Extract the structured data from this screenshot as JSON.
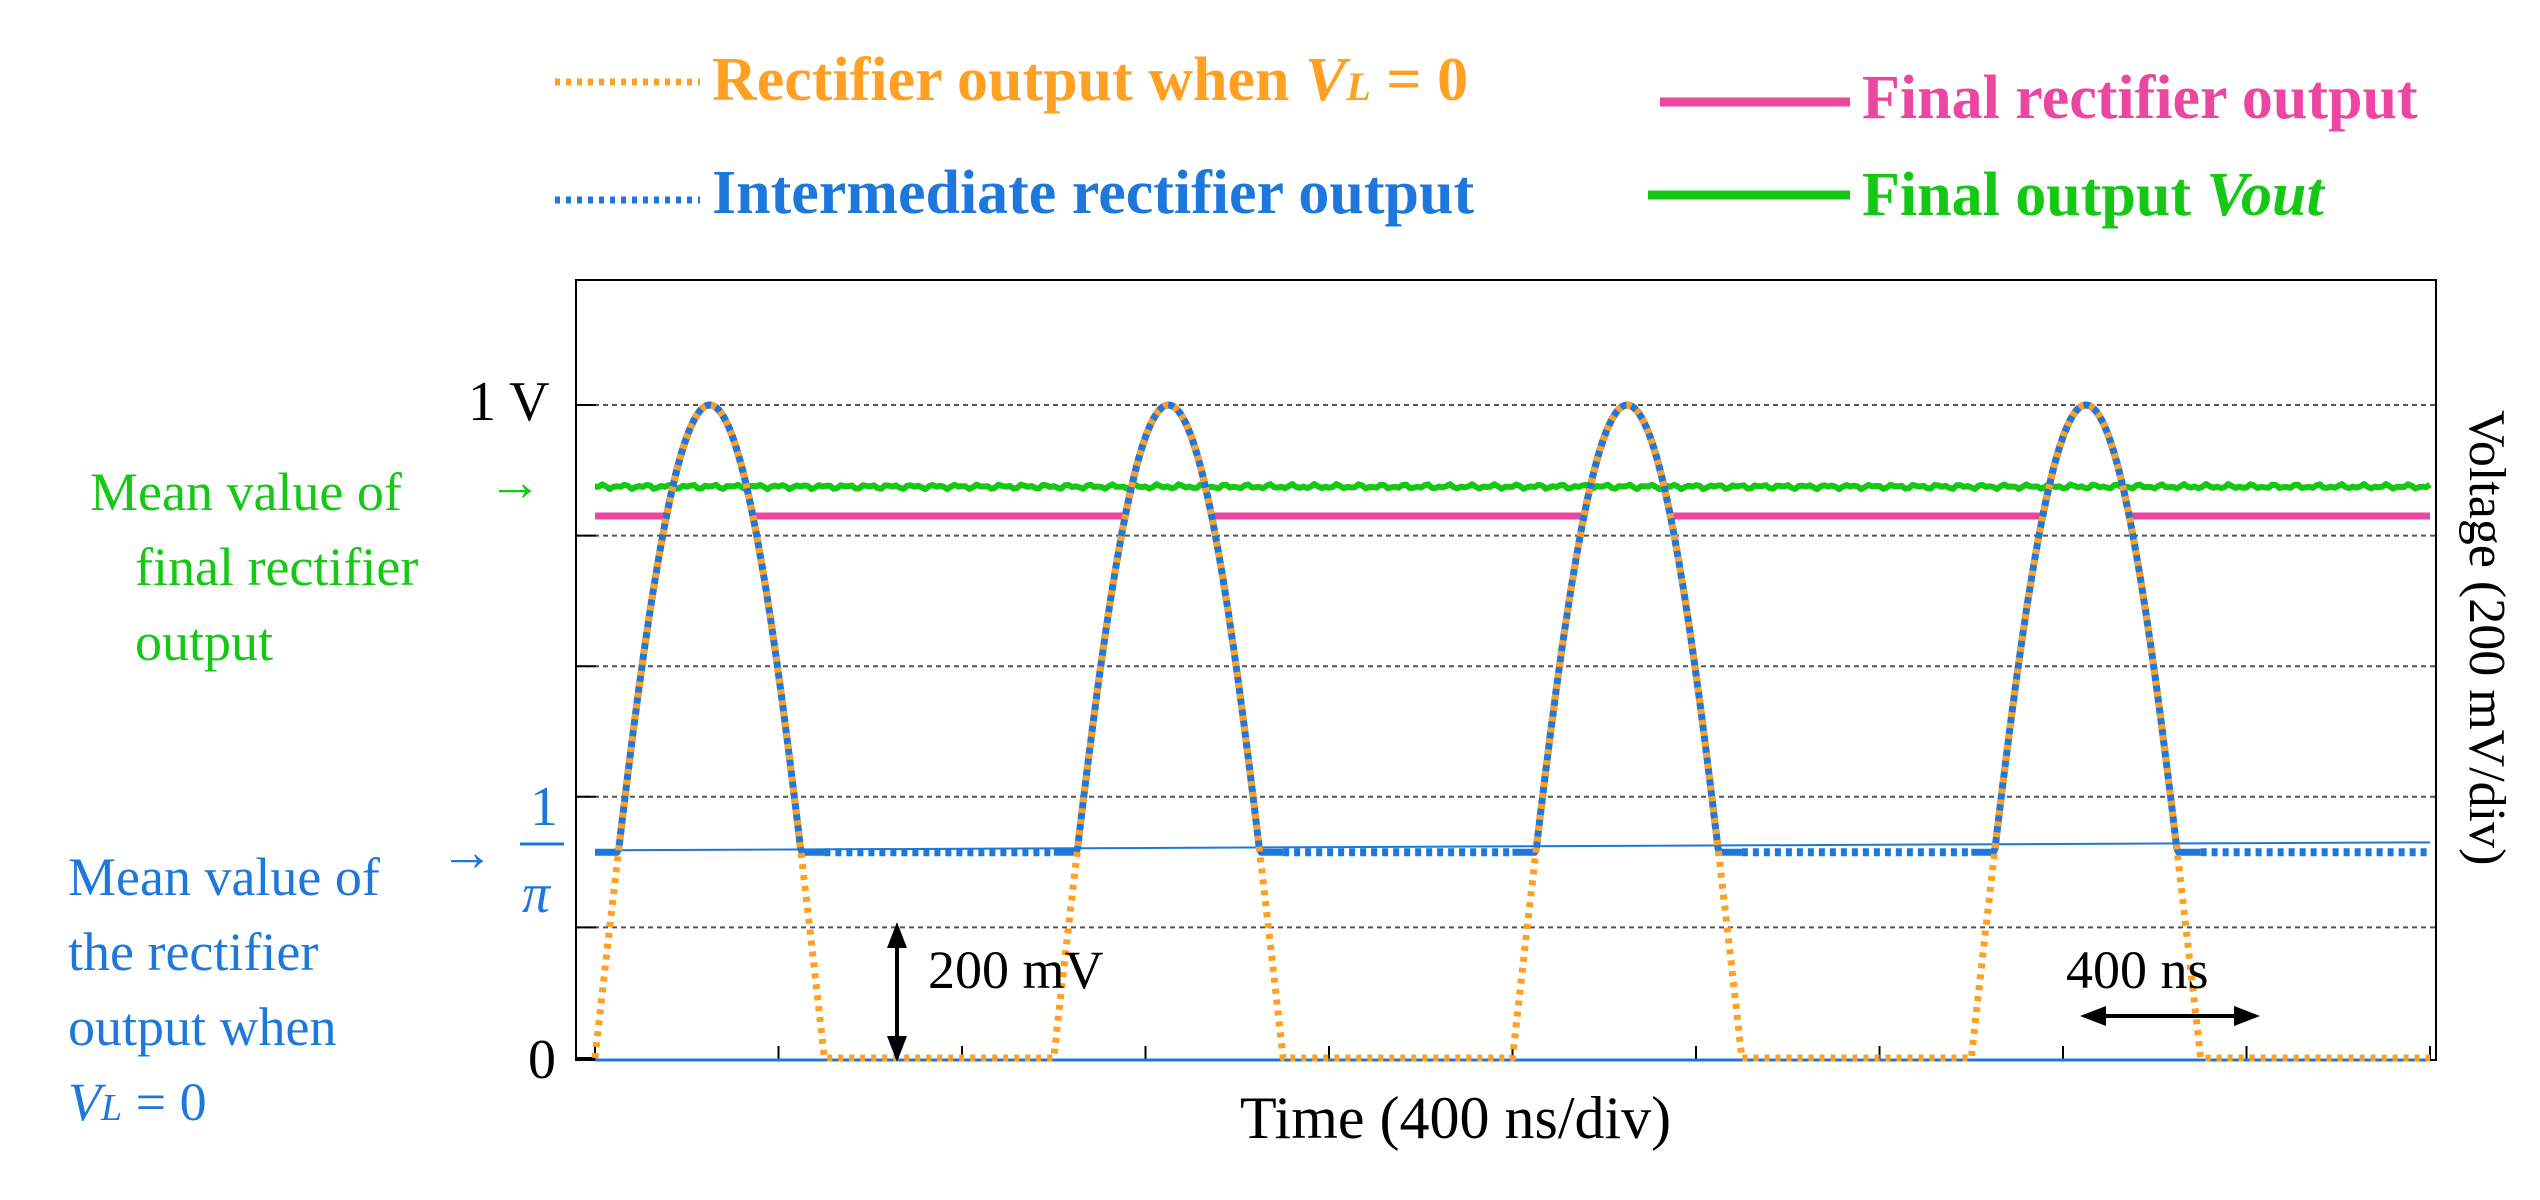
{
  "chart_data": {
    "type": "line",
    "xlabel": "Time (400 ns/div)",
    "ylabel": "Voltage (200 mV/div)",
    "x_unit": "ns",
    "y_unit": "V",
    "xlim": [
      0,
      4000
    ],
    "ylim": [
      0,
      1.0
    ],
    "grid": {
      "horizontal_dashed": true,
      "vertical": false
    },
    "y_tick_labels": [
      {
        "value": 1.0,
        "label": "1 V"
      },
      {
        "value": 0.318,
        "label": "1/π",
        "numerator": "1",
        "denominator": "π"
      },
      {
        "value": 0,
        "label": "0"
      }
    ],
    "legend": {
      "placement": "top",
      "items": [
        {
          "key": "rectifier_vl0",
          "label": "Rectifier output when ",
          "label_var": "V",
          "label_sub": "L",
          "label_tail": " = 0",
          "color": "#FFA023",
          "style": "dotted"
        },
        {
          "key": "final_rectifier",
          "label": "Final rectifier output",
          "color": "#EB46A0",
          "style": "solid"
        },
        {
          "key": "intermediate",
          "label": "Intermediate rectifier output",
          "color": "#1E78DC",
          "style": "dotted"
        },
        {
          "key": "vout",
          "label": "Final output ",
          "label_italic": "Vout",
          "color": "#14C814",
          "style": "solid"
        }
      ]
    },
    "series": [
      {
        "name": "Rectifier output when VL = 0",
        "key": "rectifier_vl0",
        "type": "half-wave",
        "period_ns": 1000,
        "pulse_width_ns": 500,
        "peak": 1.0,
        "floor": 0.0,
        "pulse_starts_ns": [
          0,
          1000,
          2000,
          3000
        ]
      },
      {
        "name": "Intermediate rectifier output",
        "key": "intermediate",
        "baseline": 0.315,
        "peak": 1.0,
        "pulse_starts_ns": [
          0,
          1000,
          2000,
          3000
        ]
      },
      {
        "name": "Final rectifier output",
        "key": "final_rectifier",
        "baseline": 0.83,
        "peak": 1.0,
        "pulse_starts_ns": [
          0,
          1000,
          2000,
          3000
        ]
      },
      {
        "name": "Final output Vout",
        "key": "vout",
        "constant": 0.875
      },
      {
        "name": "Mean value",
        "key": "mean_line",
        "constant": 0.318
      }
    ],
    "annotations": [
      {
        "key": "mean_final",
        "lines": [
          "Mean value of",
          "final rectifier",
          "output"
        ],
        "color": "#14C814",
        "arrow": "→"
      },
      {
        "key": "mean_vl0",
        "lines": [
          "Mean value of",
          "the rectifier",
          "output when"
        ],
        "line4_var": "V",
        "line4_sub": "L",
        "line4_tail": " = 0",
        "color": "#1E78DC",
        "arrow": "→"
      },
      {
        "key": "v200",
        "text": "200 mV",
        "measured_value_mV": 200
      },
      {
        "key": "t400",
        "text": "400 ns",
        "measured_value_ns": 400
      }
    ]
  }
}
